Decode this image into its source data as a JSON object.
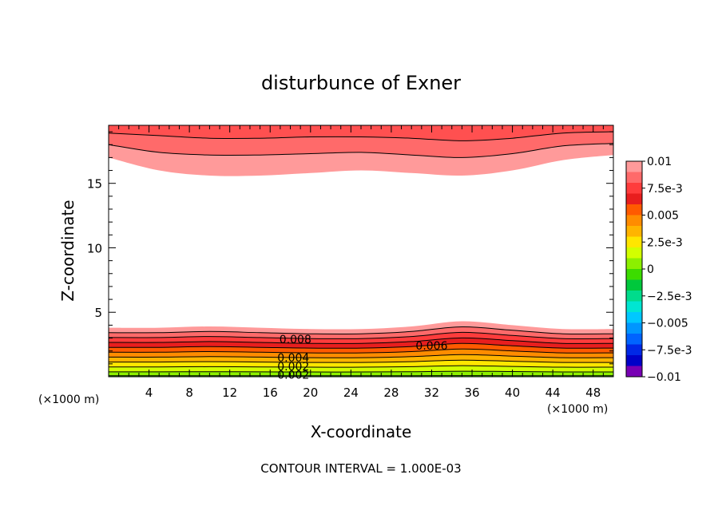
{
  "chart_data": {
    "type": "contour",
    "title": "disturbunce of Exner",
    "xlabel": "X-coordinate",
    "ylabel": "Z-coordinate",
    "x_unit_left": "(×1000 m)",
    "x_unit_right": "(×1000 m)",
    "xlim": [
      0,
      50
    ],
    "ylim": [
      0,
      19.5
    ],
    "x_ticks": [
      4,
      8,
      12,
      16,
      20,
      24,
      28,
      32,
      36,
      40,
      44,
      48
    ],
    "x_tick_labels": [
      "4",
      "8",
      "12",
      "16",
      "20",
      "24",
      "28",
      "32",
      "36",
      "40",
      "44",
      "48"
    ],
    "y_ticks": [
      5,
      10,
      15
    ],
    "y_tick_labels": [
      "5",
      "10",
      "15"
    ],
    "contour_interval_text": "CONTOUR INTERVAL = 1.000E-03",
    "contour_labels": [
      {
        "text": "0.008",
        "x": 18.5,
        "z": 2.9
      },
      {
        "text": "0.006",
        "x": 32.0,
        "z": 2.4
      },
      {
        "text": "0.004",
        "x": 18.3,
        "z": 1.5
      },
      {
        "text": "0.002",
        "x": 18.3,
        "z": 0.8
      },
      {
        "text": "0.002",
        "x": 18.3,
        "z": 0.15
      }
    ],
    "colorbar": {
      "min": -0.01,
      "max": 0.01,
      "tick_labels": [
        "0.01",
        "7.5e-3",
        "0.005",
        "2.5e-3",
        "0",
        "-2.5e-3",
        "-0.005",
        "-7.5e-3",
        "-0.01"
      ],
      "colors": [
        "#ff9a9a",
        "#ff6a6a",
        "#ff3c3c",
        "#e81e1e",
        "#ff5a00",
        "#ff8c00",
        "#ffb400",
        "#ffe600",
        "#d2ff00",
        "#8cf000",
        "#3cdc00",
        "#00c83c",
        "#00dc8c",
        "#00e6d2",
        "#00c8ff",
        "#0096ff",
        "#0064ff",
        "#0028e6",
        "#0000c8",
        "#7800b4"
      ]
    },
    "top_region": {
      "description_levels": [
        0.008,
        0.009,
        0.01
      ],
      "x": [
        0,
        5,
        10,
        15,
        20,
        25,
        30,
        35,
        40,
        45,
        50
      ],
      "z_0p008": [
        17.0,
        16.0,
        15.6,
        15.6,
        15.8,
        16.0,
        15.8,
        15.6,
        16.0,
        16.8,
        17.2
      ],
      "z_0p009": [
        18.0,
        17.4,
        17.2,
        17.2,
        17.3,
        17.4,
        17.2,
        17.0,
        17.3,
        17.9,
        18.1
      ],
      "z_0p010": [
        18.9,
        18.7,
        18.5,
        18.5,
        18.6,
        18.6,
        18.5,
        18.3,
        18.5,
        18.9,
        19.0
      ]
    },
    "bottom_region": {
      "x": [
        0,
        5,
        10,
        15,
        20,
        25,
        30,
        35,
        40,
        45,
        50
      ],
      "top_z": [
        3.8,
        3.8,
        3.9,
        3.8,
        3.7,
        3.7,
        3.9,
        4.3,
        4.0,
        3.7,
        3.7
      ],
      "levels": [
        0.009,
        0.008,
        0.007,
        0.006,
        0.005,
        0.004,
        0.003,
        0.002,
        0.001,
        0.0
      ],
      "level_fracs": [
        0.9,
        0.8,
        0.7,
        0.6,
        0.5,
        0.4,
        0.3,
        0.2,
        0.1,
        0.02
      ]
    }
  }
}
